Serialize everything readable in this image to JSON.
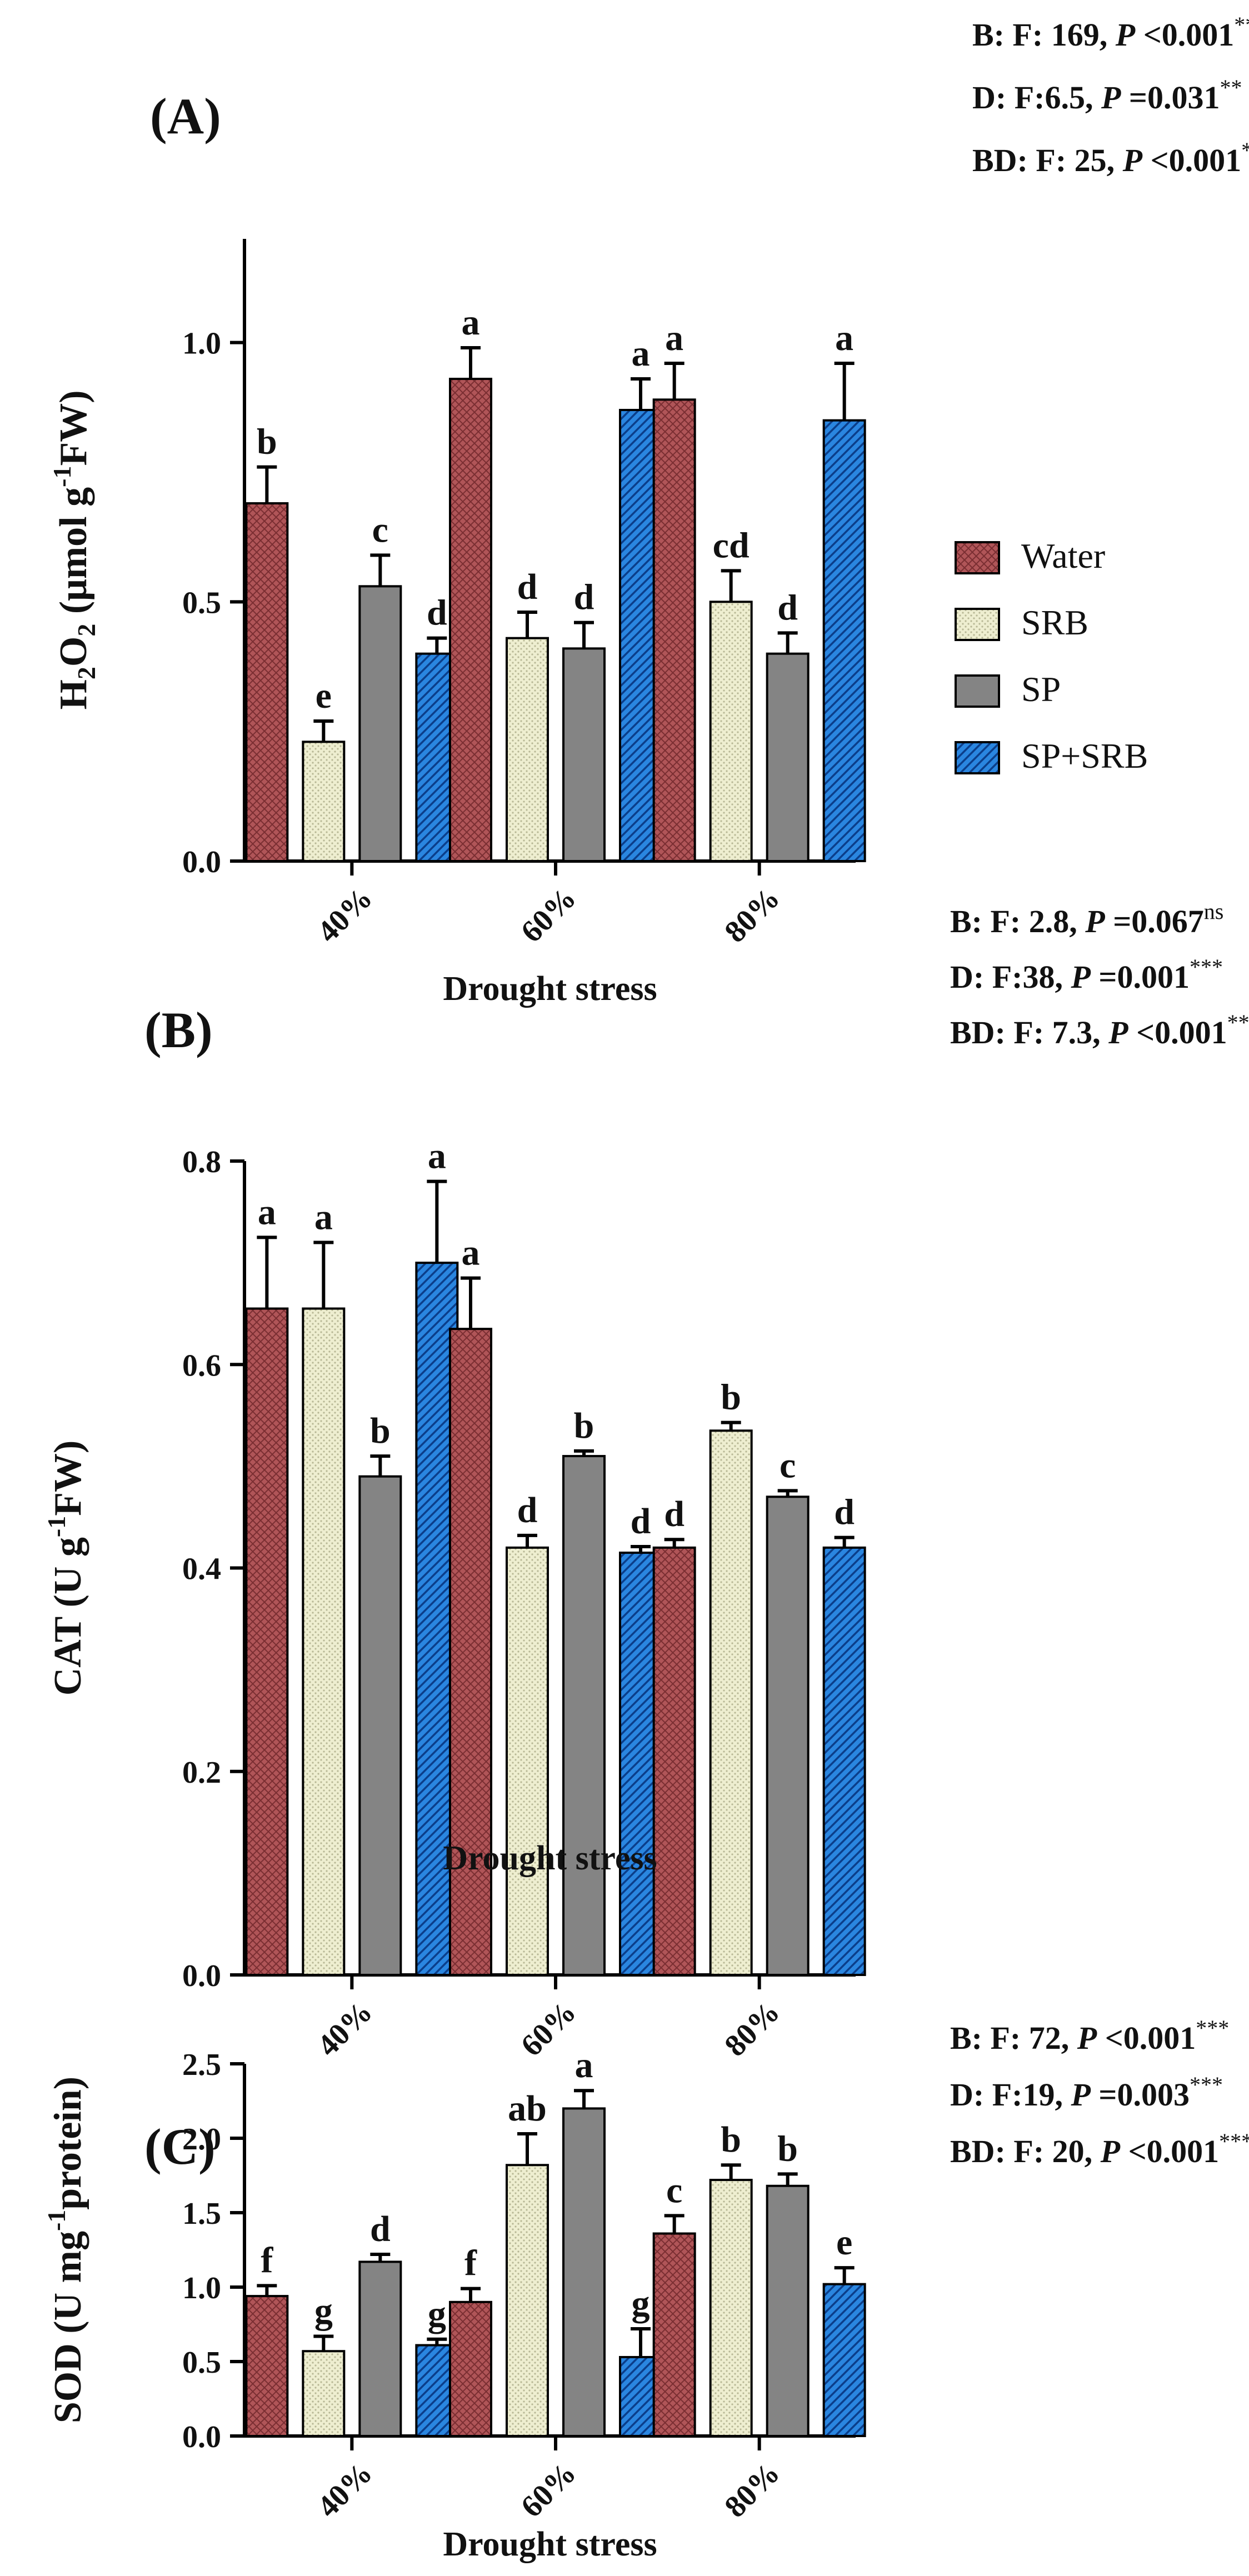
{
  "colors": {
    "axis": "#000000",
    "Water": "#b05558",
    "SRB": "#eeeed0",
    "SP": "#848484",
    "SP+SRB": "#2a86e0"
  },
  "legend": {
    "items": [
      {
        "label": "Water",
        "pattern": "crosshatch"
      },
      {
        "label": "SRB",
        "pattern": "dots"
      },
      {
        "label": "SP",
        "pattern": "solid"
      },
      {
        "label": "SP+SRB",
        "pattern": "diagonal"
      }
    ]
  },
  "chart_data": [
    {
      "type": "bar",
      "panel": "(A)",
      "ylabel_main": "H",
      "ylabel_sub1": "2",
      "ylabel_mid": "O",
      "ylabel_sub2": "2",
      "ylabel_unit": "(μmol g",
      "ylabel_sup": "-1",
      "ylabel_end": "FW)",
      "xlabel": "Drought stress",
      "categories": [
        "40%",
        "60%",
        "80%"
      ],
      "ylim": [
        0,
        1.2
      ],
      "yticks": [
        0.0,
        0.5,
        1.0
      ],
      "ytick_labels": [
        "0.0",
        "0.5",
        "1.0"
      ],
      "series": [
        {
          "name": "Water",
          "values": [
            0.69,
            0.93,
            0.89
          ],
          "errors": [
            0.07,
            0.06,
            0.07
          ],
          "letters": [
            "b",
            "a",
            "a"
          ]
        },
        {
          "name": "SRB",
          "values": [
            0.23,
            0.43,
            0.5
          ],
          "errors": [
            0.04,
            0.05,
            0.06
          ],
          "letters": [
            "e",
            "d",
            "cd"
          ]
        },
        {
          "name": "SP",
          "values": [
            0.53,
            0.41,
            0.4
          ],
          "errors": [
            0.06,
            0.05,
            0.04
          ],
          "letters": [
            "c",
            "d",
            "d"
          ]
        },
        {
          "name": "SP+SRB",
          "values": [
            0.4,
            0.87,
            0.85
          ],
          "errors": [
            0.03,
            0.06,
            0.11
          ],
          "letters": [
            "d",
            "a",
            "a"
          ]
        }
      ],
      "stats": [
        {
          "lead": "B: F: 169, ",
          "p": "P",
          "rest": " <0.001",
          "sig": "***"
        },
        {
          "lead": "D: F:6.5, ",
          "p": "P",
          "rest": " =0.031",
          "sig": "**"
        },
        {
          "lead": "BD: F: 25, ",
          "p": "P",
          "rest": " <0.001",
          "sig": "***"
        }
      ]
    },
    {
      "type": "bar",
      "panel": "(B)",
      "ylabel_main": "CAT (U g",
      "ylabel_sup": "-1",
      "ylabel_end": "FW)",
      "xlabel": "Drought stress",
      "categories": [
        "40%",
        "60%",
        "80%"
      ],
      "ylim": [
        0,
        0.8
      ],
      "yticks": [
        0.0,
        0.2,
        0.4,
        0.6,
        0.8
      ],
      "ytick_labels": [
        "0.0",
        "0.2",
        "0.4",
        "0.6",
        "0.8"
      ],
      "series": [
        {
          "name": "Water",
          "values": [
            0.655,
            0.635,
            0.42
          ],
          "errors": [
            0.07,
            0.05,
            0.008
          ],
          "letters": [
            "a",
            "a",
            "d"
          ]
        },
        {
          "name": "SRB",
          "values": [
            0.655,
            0.42,
            0.535
          ],
          "errors": [
            0.065,
            0.012,
            0.008
          ],
          "letters": [
            "a",
            "d",
            "b"
          ]
        },
        {
          "name": "SP",
          "values": [
            0.49,
            0.51,
            0.47
          ],
          "errors": [
            0.02,
            0.005,
            0.006
          ],
          "letters": [
            "b",
            "b",
            "c"
          ]
        },
        {
          "name": "SP+SRB",
          "values": [
            0.7,
            0.415,
            0.42
          ],
          "errors": [
            0.08,
            0.006,
            0.01
          ],
          "letters": [
            "a",
            "d",
            "d"
          ]
        }
      ],
      "stats": [
        {
          "lead": "B: F: 2.8, ",
          "p": "P",
          "rest": " =0.067",
          "sig": "ns"
        },
        {
          "lead": "D: F:38, ",
          "p": "P",
          "rest": " =0.001",
          "sig": "***"
        },
        {
          "lead": "BD: F: 7.3, ",
          "p": "P",
          "rest": " <0.001",
          "sig": "***"
        }
      ]
    },
    {
      "type": "bar",
      "panel": "(C)",
      "ylabel_main": "SOD (U mg",
      "ylabel_sup": "-1",
      "ylabel_end": "protein)",
      "xlabel": "Drought stress",
      "categories": [
        "40%",
        "60%",
        "80%"
      ],
      "ylim": [
        0,
        2.5
      ],
      "yticks": [
        0.0,
        0.5,
        1.0,
        1.5,
        2.0,
        2.5
      ],
      "ytick_labels": [
        "0.0",
        "0.5",
        "1.0",
        "1.5",
        "2.0",
        "2.5"
      ],
      "series": [
        {
          "name": "Water",
          "values": [
            0.94,
            0.9,
            1.36
          ],
          "errors": [
            0.07,
            0.09,
            0.12
          ],
          "letters": [
            "f",
            "f",
            "c"
          ]
        },
        {
          "name": "SRB",
          "values": [
            0.57,
            1.82,
            1.72
          ],
          "errors": [
            0.1,
            0.21,
            0.1
          ],
          "letters": [
            "g",
            "ab",
            "b"
          ]
        },
        {
          "name": "SP",
          "values": [
            1.17,
            2.2,
            1.68
          ],
          "errors": [
            0.05,
            0.12,
            0.08
          ],
          "letters": [
            "d",
            "a",
            "b"
          ]
        },
        {
          "name": "SP+SRB",
          "values": [
            0.61,
            0.53,
            1.02
          ],
          "errors": [
            0.04,
            0.19,
            0.11
          ],
          "letters": [
            "g",
            "g",
            "e"
          ]
        }
      ],
      "stats": [
        {
          "lead": "B: F: 72, ",
          "p": "P",
          "rest": " <0.001",
          "sig": "***"
        },
        {
          "lead": "D: F:19, ",
          "p": "P",
          "rest": " =0.003",
          "sig": "***"
        },
        {
          "lead": "BD: F: 20, ",
          "p": "P",
          "rest": " <0.001",
          "sig": "***"
        }
      ]
    }
  ]
}
